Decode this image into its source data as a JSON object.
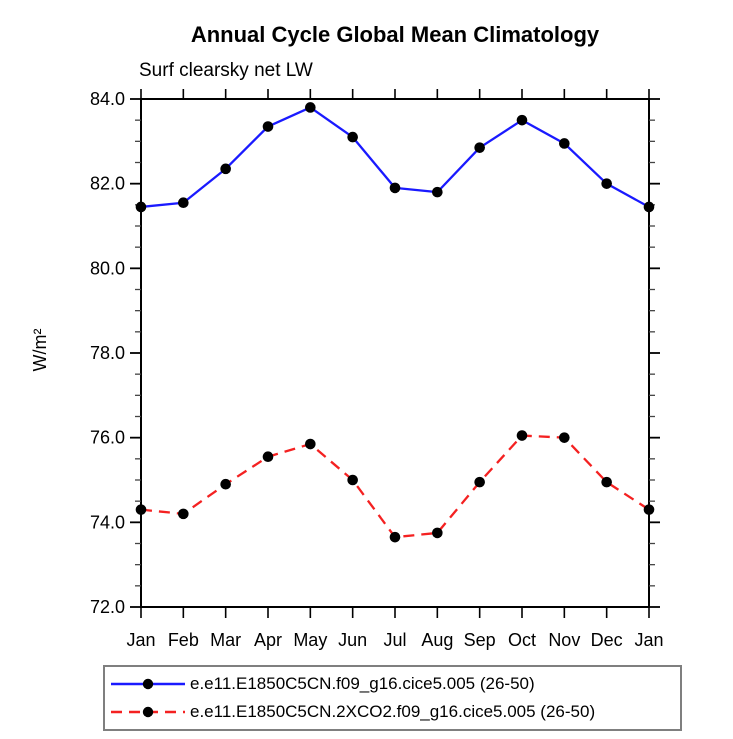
{
  "chart": {
    "title": "Annual Cycle Global Mean Climatology",
    "subtitle": "Surf clearsky net LW",
    "y_axis_label": "W/m²"
  },
  "legend": {
    "entries": [
      {
        "label": "e.e11.E1850C5CN.f09_g16.cice5.005 (26-50)",
        "color": "#1a1aff",
        "style": "solid",
        "marker": "filled-circle",
        "marker_color": "#000000"
      },
      {
        "label": "e.e11.E1850C5CN.2XCO2.f09_g16.cice5.005 (26-50)",
        "color": "#f42121",
        "style": "dashed",
        "dash": "11 7",
        "marker": "filled-circle",
        "marker_color": "#000000"
      }
    ]
  },
  "chart_data": {
    "type": "line",
    "title": "Annual Cycle Global Mean Climatology",
    "subtitle": "Surf clearsky net LW",
    "ylabel": "W/m²",
    "xlabel": "",
    "categories": [
      "Jan",
      "Feb",
      "Mar",
      "Apr",
      "May",
      "Jun",
      "Jul",
      "Aug",
      "Sep",
      "Oct",
      "Nov",
      "Dec",
      "Jan"
    ],
    "ylim": [
      72.0,
      84.0
    ],
    "y_major_step": 2.0,
    "y_minor_step": 0.5,
    "y_tick_format_decimals": 1,
    "grid": false,
    "legend_position": "bottom",
    "series": [
      {
        "name": "e.e11.E1850C5CN.f09_g16.cice5.005 (26-50)",
        "color": "#1a1aff",
        "line_style": "solid",
        "marker": "filled-circle",
        "marker_color": "#000000",
        "values": [
          81.45,
          81.55,
          82.35,
          83.35,
          83.8,
          83.1,
          81.9,
          81.8,
          82.85,
          83.5,
          82.95,
          82.0,
          81.45
        ]
      },
      {
        "name": "e.e11.E1850C5CN.2XCO2.f09_g16.cice5.005 (26-50)",
        "color": "#f42121",
        "line_style": "dashed",
        "marker": "filled-circle",
        "marker_color": "#000000",
        "values": [
          74.3,
          74.2,
          74.9,
          75.55,
          75.85,
          75.0,
          73.65,
          73.75,
          74.95,
          76.05,
          76.0,
          74.95,
          74.3
        ]
      }
    ]
  }
}
